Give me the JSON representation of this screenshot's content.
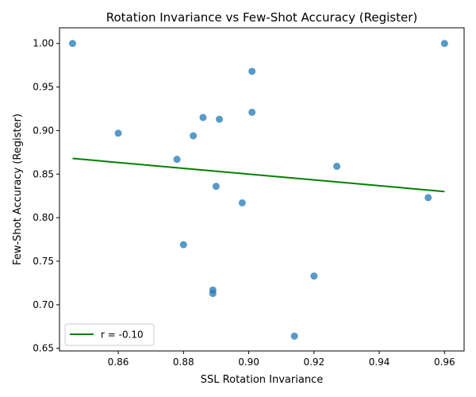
{
  "chart_data": {
    "type": "scatter",
    "title": "Rotation Invariance vs Few-Shot Accuracy (Register)",
    "xlabel": "SSL Rotation Invariance",
    "ylabel": "Few-Shot Accuracy (Register)",
    "xlim": [
      0.842,
      0.966
    ],
    "ylim": [
      0.647,
      1.018
    ],
    "xticks": [
      0.86,
      0.88,
      0.9,
      0.92,
      0.94,
      0.96
    ],
    "xtick_labels": [
      "0.86",
      "0.88",
      "0.90",
      "0.92",
      "0.94",
      "0.96"
    ],
    "yticks": [
      0.65,
      0.7,
      0.75,
      0.8,
      0.85,
      0.9,
      0.95,
      1.0
    ],
    "ytick_labels": [
      "0.65",
      "0.70",
      "0.75",
      "0.80",
      "0.85",
      "0.90",
      "0.95",
      "1.00"
    ],
    "point_color": "#1f77b4",
    "points": [
      {
        "x": 0.846,
        "y": 1.0
      },
      {
        "x": 0.96,
        "y": 1.0
      },
      {
        "x": 0.901,
        "y": 0.968
      },
      {
        "x": 0.901,
        "y": 0.921
      },
      {
        "x": 0.886,
        "y": 0.915
      },
      {
        "x": 0.891,
        "y": 0.913
      },
      {
        "x": 0.86,
        "y": 0.897
      },
      {
        "x": 0.883,
        "y": 0.894
      },
      {
        "x": 0.878,
        "y": 0.867
      },
      {
        "x": 0.927,
        "y": 0.859
      },
      {
        "x": 0.89,
        "y": 0.836
      },
      {
        "x": 0.955,
        "y": 0.823
      },
      {
        "x": 0.898,
        "y": 0.817
      },
      {
        "x": 0.88,
        "y": 0.769
      },
      {
        "x": 0.92,
        "y": 0.733
      },
      {
        "x": 0.889,
        "y": 0.717
      },
      {
        "x": 0.889,
        "y": 0.713
      },
      {
        "x": 0.914,
        "y": 0.664
      }
    ],
    "fit_line": {
      "label": "r = -0.10",
      "color": "#008000",
      "x": [
        0.846,
        0.96
      ],
      "y": [
        0.868,
        0.83
      ]
    },
    "legend_position": "lower-left",
    "grid": false
  }
}
